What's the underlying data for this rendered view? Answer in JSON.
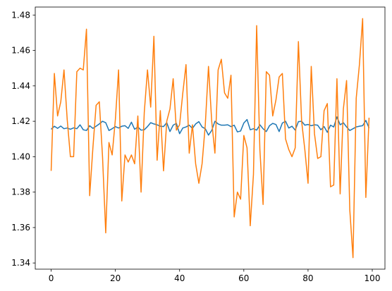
{
  "chart_data": {
    "type": "line",
    "x": [
      0,
      1,
      2,
      3,
      4,
      5,
      6,
      7,
      8,
      9,
      10,
      11,
      12,
      13,
      14,
      15,
      16,
      17,
      18,
      19,
      20,
      21,
      22,
      23,
      24,
      25,
      26,
      27,
      28,
      29,
      30,
      31,
      32,
      33,
      34,
      35,
      36,
      37,
      38,
      39,
      40,
      41,
      42,
      43,
      44,
      45,
      46,
      47,
      48,
      49,
      50,
      51,
      52,
      53,
      54,
      55,
      56,
      57,
      58,
      59,
      60,
      61,
      62,
      63,
      64,
      65,
      66,
      67,
      68,
      69,
      70,
      71,
      72,
      73,
      74,
      75,
      76,
      77,
      78,
      79,
      80,
      81,
      82,
      83,
      84,
      85,
      86,
      87,
      88,
      89,
      90,
      91,
      92,
      93,
      94,
      95,
      96,
      97,
      98,
      99
    ],
    "series": [
      {
        "color": "#1f77b4",
        "values": [
          1.4155,
          1.4172,
          1.416,
          1.4173,
          1.4158,
          1.4162,
          1.4155,
          1.4163,
          1.4158,
          1.418,
          1.4152,
          1.4148,
          1.4175,
          1.416,
          1.4172,
          1.4185,
          1.42,
          1.4192,
          1.4148,
          1.4158,
          1.417,
          1.4162,
          1.4172,
          1.4175,
          1.416,
          1.4195,
          1.4155,
          1.4168,
          1.415,
          1.4152,
          1.417,
          1.4192,
          1.4185,
          1.418,
          1.4172,
          1.417,
          1.4192,
          1.4142,
          1.4178,
          1.4188,
          1.413,
          1.4162,
          1.4168,
          1.4178,
          1.416,
          1.4185,
          1.4198,
          1.4168,
          1.4158,
          1.4122,
          1.4148,
          1.42,
          1.4185,
          1.4178,
          1.4178,
          1.418,
          1.417,
          1.4178,
          1.414,
          1.4145,
          1.419,
          1.421,
          1.4152,
          1.4158,
          1.415,
          1.418,
          1.4158,
          1.4142,
          1.4175,
          1.4188,
          1.4182,
          1.4142,
          1.419,
          1.42,
          1.4162,
          1.4172,
          1.415,
          1.4198,
          1.42,
          1.4178,
          1.4182,
          1.4175,
          1.418,
          1.4178,
          1.4152,
          1.417,
          1.4138,
          1.4178,
          1.4168,
          1.4225,
          1.418,
          1.4192,
          1.4168,
          1.4148,
          1.4158,
          1.4168,
          1.4172,
          1.4175,
          1.4205,
          1.4162
        ]
      },
      {
        "color": "#ff7f0e",
        "values": [
          1.392,
          1.447,
          1.423,
          1.431,
          1.449,
          1.421,
          1.4,
          1.4,
          1.448,
          1.45,
          1.449,
          1.472,
          1.378,
          1.405,
          1.429,
          1.431,
          1.4,
          1.357,
          1.408,
          1.401,
          1.421,
          1.449,
          1.375,
          1.401,
          1.397,
          1.401,
          1.396,
          1.423,
          1.38,
          1.425,
          1.449,
          1.428,
          1.468,
          1.398,
          1.426,
          1.392,
          1.42,
          1.427,
          1.444,
          1.415,
          1.418,
          1.436,
          1.452,
          1.402,
          1.418,
          1.396,
          1.385,
          1.396,
          1.418,
          1.451,
          1.42,
          1.402,
          1.449,
          1.455,
          1.436,
          1.433,
          1.446,
          1.366,
          1.38,
          1.376,
          1.412,
          1.405,
          1.361,
          1.39,
          1.474,
          1.404,
          1.373,
          1.448,
          1.446,
          1.423,
          1.432,
          1.445,
          1.447,
          1.41,
          1.404,
          1.4,
          1.405,
          1.465,
          1.42,
          1.404,
          1.385,
          1.451,
          1.413,
          1.399,
          1.4,
          1.426,
          1.43,
          1.383,
          1.384,
          1.444,
          1.379,
          1.427,
          1.443,
          1.37,
          1.343,
          1.433,
          1.452,
          1.478,
          1.377,
          1.422
        ]
      }
    ],
    "xlim": [
      -4.95,
      103.95
    ],
    "ylim": [
      1.3365,
      1.4845
    ],
    "xticks": [
      0,
      20,
      40,
      60,
      80,
      100
    ],
    "yticks": [
      1.34,
      1.36,
      1.38,
      {
        "value": 1.4,
        "label": "1.40"
      },
      1.42,
      1.44,
      1.46,
      1.48
    ]
  }
}
